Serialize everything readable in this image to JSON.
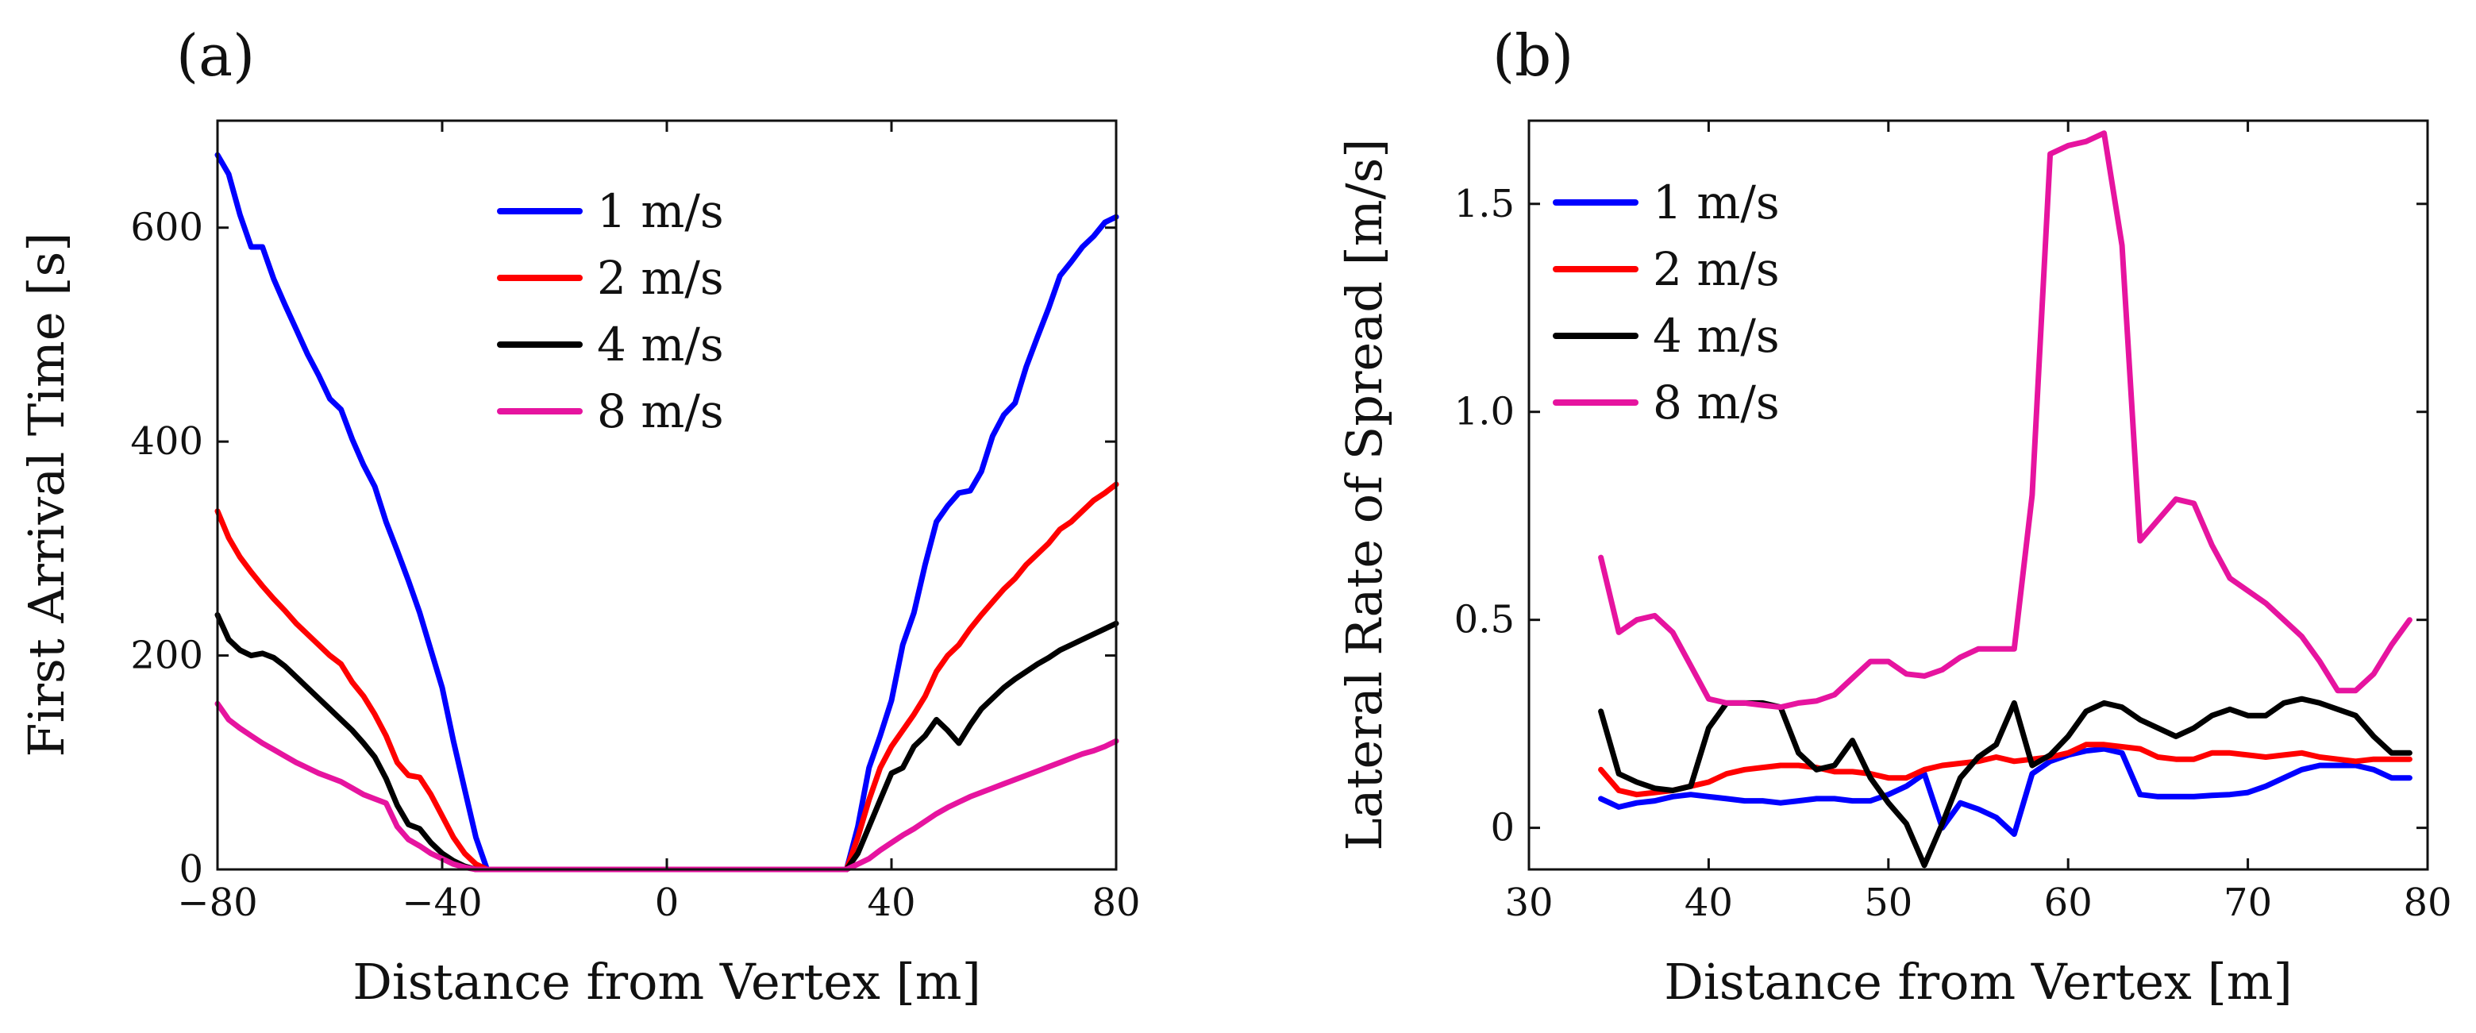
{
  "chart_data": [
    {
      "type": "line",
      "panel": "(a)",
      "xlabel": "Distance from Vertex [m]",
      "ylabel": "First Arrival Time [s]",
      "xlim": [
        -80,
        80
      ],
      "ylim": [
        0,
        700
      ],
      "xticks": [
        -80,
        -40,
        0,
        40,
        80
      ],
      "xtick_labels": [
        "−80",
        "−40",
        "0",
        "40",
        "80"
      ],
      "yticks": [
        0,
        200,
        400,
        600
      ],
      "ytick_labels": [
        "0",
        "200",
        "400",
        "600"
      ],
      "legend_position": "top-center",
      "series": [
        {
          "name": "1 m/s",
          "color": "#0000ff",
          "x": [
            -80,
            -78,
            -76,
            -74,
            -72,
            -70,
            -68,
            -66,
            -64,
            -62,
            -60,
            -58,
            -56,
            -54,
            -52,
            -50,
            -48,
            -46,
            -44,
            -42,
            -40,
            -38,
            -36,
            -34,
            -32,
            0,
            32,
            34,
            36,
            38,
            40,
            42,
            44,
            46,
            48,
            50,
            52,
            54,
            56,
            58,
            60,
            62,
            64,
            66,
            68,
            70,
            72,
            74,
            76,
            78,
            80
          ],
          "y": [
            668,
            650,
            612,
            582,
            582,
            552,
            528,
            505,
            482,
            462,
            440,
            430,
            402,
            378,
            358,
            325,
            298,
            270,
            240,
            205,
            170,
            120,
            75,
            30,
            0,
            0,
            0,
            40,
            95,
            125,
            158,
            210,
            240,
            285,
            325,
            340,
            352,
            354,
            372,
            405,
            425,
            436,
            470,
            498,
            525,
            555,
            568,
            582,
            592,
            605,
            610
          ]
        },
        {
          "name": "2 m/s",
          "color": "#ff0000",
          "x": [
            -80,
            -78,
            -76,
            -74,
            -72,
            -70,
            -68,
            -66,
            -64,
            -62,
            -60,
            -58,
            -56,
            -54,
            -52,
            -50,
            -48,
            -46,
            -44,
            -42,
            -40,
            -38,
            -36,
            -34,
            -32,
            0,
            32,
            34,
            36,
            38,
            40,
            42,
            44,
            46,
            48,
            50,
            52,
            54,
            56,
            58,
            60,
            62,
            64,
            66,
            68,
            70,
            72,
            74,
            76,
            78,
            80
          ],
          "y": [
            335,
            310,
            292,
            278,
            265,
            253,
            242,
            230,
            220,
            210,
            200,
            192,
            175,
            162,
            145,
            125,
            100,
            88,
            86,
            70,
            50,
            30,
            15,
            5,
            0,
            0,
            0,
            30,
            65,
            95,
            115,
            130,
            145,
            162,
            185,
            200,
            210,
            225,
            238,
            250,
            262,
            272,
            285,
            295,
            305,
            318,
            325,
            335,
            345,
            352,
            360
          ]
        },
        {
          "name": "4 m/s",
          "color": "#000000",
          "x": [
            -80,
            -78,
            -76,
            -74,
            -72,
            -70,
            -68,
            -66,
            -64,
            -62,
            -60,
            -58,
            -56,
            -54,
            -52,
            -50,
            -48,
            -46,
            -44,
            -42,
            -40,
            -38,
            -36,
            -34,
            -32,
            0,
            32,
            34,
            36,
            38,
            40,
            42,
            44,
            46,
            48,
            50,
            52,
            54,
            56,
            58,
            60,
            62,
            64,
            66,
            68,
            70,
            72,
            74,
            76,
            78,
            80
          ],
          "y": [
            238,
            215,
            205,
            200,
            202,
            198,
            190,
            180,
            170,
            160,
            150,
            140,
            130,
            118,
            105,
            85,
            60,
            42,
            38,
            25,
            15,
            8,
            3,
            0,
            0,
            0,
            0,
            15,
            40,
            65,
            90,
            95,
            115,
            125,
            140,
            130,
            118,
            135,
            150,
            160,
            170,
            178,
            185,
            192,
            198,
            205,
            210,
            215,
            220,
            225,
            230
          ]
        },
        {
          "name": "8 m/s",
          "color": "#e6149f",
          "x": [
            -80,
            -78,
            -76,
            -74,
            -72,
            -70,
            -68,
            -66,
            -64,
            -62,
            -60,
            -58,
            -56,
            -54,
            -52,
            -50,
            -48,
            -46,
            -44,
            -42,
            -40,
            -38,
            -36,
            -34,
            -32,
            0,
            32,
            34,
            36,
            38,
            40,
            42,
            44,
            46,
            48,
            50,
            52,
            54,
            56,
            58,
            60,
            62,
            64,
            66,
            68,
            70,
            72,
            74,
            76,
            78,
            80
          ],
          "y": [
            155,
            140,
            132,
            125,
            118,
            112,
            106,
            100,
            95,
            90,
            86,
            82,
            76,
            70,
            66,
            62,
            40,
            28,
            22,
            15,
            10,
            5,
            2,
            0,
            0,
            0,
            0,
            5,
            10,
            18,
            25,
            32,
            38,
            45,
            52,
            58,
            63,
            68,
            72,
            76,
            80,
            84,
            88,
            92,
            96,
            100,
            104,
            108,
            111,
            115,
            120
          ]
        }
      ]
    },
    {
      "type": "line",
      "panel": "(b)",
      "xlabel": "Distance from Vertex [m]",
      "ylabel": "Lateral Rate of Spread [m/s]",
      "xlim": [
        30,
        80
      ],
      "ylim": [
        -0.1,
        1.7
      ],
      "xticks": [
        30,
        40,
        50,
        60,
        70,
        80
      ],
      "xtick_labels": [
        "30",
        "40",
        "50",
        "60",
        "70",
        "80"
      ],
      "yticks": [
        0,
        0.5,
        1.0,
        1.5
      ],
      "ytick_labels": [
        "0",
        "0.5",
        "1.0",
        "1.5"
      ],
      "legend_position": "top-left",
      "series": [
        {
          "name": "1 m/s",
          "color": "#0000ff",
          "x": [
            34,
            35,
            36,
            37,
            38,
            39,
            40,
            41,
            42,
            43,
            44,
            45,
            46,
            47,
            48,
            49,
            50,
            51,
            52,
            53,
            54,
            55,
            56,
            57,
            58,
            59,
            60,
            61,
            62,
            63,
            64,
            65,
            66,
            67,
            68,
            69,
            70,
            71,
            72,
            73,
            74,
            75,
            76,
            77,
            78,
            79
          ],
          "y": [
            0.07,
            0.05,
            0.06,
            0.065,
            0.075,
            0.08,
            0.075,
            0.07,
            0.065,
            0.065,
            0.06,
            0.065,
            0.07,
            0.07,
            0.065,
            0.065,
            0.08,
            0.1,
            0.13,
            0.0,
            0.06,
            0.045,
            0.025,
            -0.015,
            0.13,
            0.16,
            0.175,
            0.185,
            0.19,
            0.18,
            0.08,
            0.075,
            0.075,
            0.075,
            0.078,
            0.08,
            0.085,
            0.1,
            0.12,
            0.14,
            0.15,
            0.15,
            0.15,
            0.14,
            0.12,
            0.12
          ]
        },
        {
          "name": "2 m/s",
          "color": "#ff0000",
          "x": [
            34,
            35,
            36,
            37,
            38,
            39,
            40,
            41,
            42,
            43,
            44,
            45,
            46,
            47,
            48,
            49,
            50,
            51,
            52,
            53,
            54,
            55,
            56,
            57,
            58,
            59,
            60,
            61,
            62,
            63,
            64,
            65,
            66,
            67,
            68,
            69,
            70,
            71,
            72,
            73,
            74,
            75,
            76,
            77,
            78,
            79
          ],
          "y": [
            0.14,
            0.09,
            0.08,
            0.085,
            0.09,
            0.1,
            0.11,
            0.13,
            0.14,
            0.145,
            0.15,
            0.15,
            0.145,
            0.135,
            0.135,
            0.13,
            0.12,
            0.12,
            0.14,
            0.15,
            0.155,
            0.16,
            0.17,
            0.16,
            0.165,
            0.17,
            0.18,
            0.2,
            0.2,
            0.195,
            0.19,
            0.17,
            0.165,
            0.165,
            0.18,
            0.18,
            0.175,
            0.17,
            0.175,
            0.18,
            0.17,
            0.165,
            0.16,
            0.165,
            0.165,
            0.165
          ]
        },
        {
          "name": "4 m/s",
          "color": "#000000",
          "x": [
            34,
            35,
            36,
            37,
            38,
            39,
            40,
            41,
            42,
            43,
            44,
            45,
            46,
            47,
            48,
            49,
            50,
            51,
            52,
            53,
            54,
            55,
            56,
            57,
            58,
            59,
            60,
            61,
            62,
            63,
            64,
            65,
            66,
            67,
            68,
            69,
            70,
            71,
            72,
            73,
            74,
            75,
            76,
            77,
            78,
            79
          ],
          "y": [
            0.28,
            0.13,
            0.11,
            0.095,
            0.09,
            0.1,
            0.24,
            0.3,
            0.3,
            0.3,
            0.29,
            0.18,
            0.14,
            0.15,
            0.21,
            0.12,
            0.06,
            0.01,
            -0.09,
            0.01,
            0.12,
            0.17,
            0.2,
            0.3,
            0.15,
            0.175,
            0.22,
            0.28,
            0.3,
            0.29,
            0.26,
            0.24,
            0.22,
            0.24,
            0.27,
            0.285,
            0.27,
            0.27,
            0.3,
            0.31,
            0.3,
            0.285,
            0.27,
            0.22,
            0.18,
            0.18
          ]
        },
        {
          "name": "8 m/s",
          "color": "#e6149f",
          "x": [
            34,
            35,
            36,
            37,
            38,
            39,
            40,
            41,
            42,
            43,
            44,
            45,
            46,
            47,
            48,
            49,
            50,
            51,
            52,
            53,
            54,
            55,
            56,
            57,
            58,
            59,
            60,
            61,
            62,
            63,
            64,
            65,
            66,
            67,
            68,
            69,
            70,
            71,
            72,
            73,
            74,
            75,
            76,
            77,
            78,
            79
          ],
          "y": [
            0.65,
            0.47,
            0.5,
            0.51,
            0.47,
            0.39,
            0.31,
            0.3,
            0.3,
            0.295,
            0.29,
            0.3,
            0.305,
            0.32,
            0.36,
            0.4,
            0.4,
            0.37,
            0.365,
            0.38,
            0.41,
            0.43,
            0.43,
            0.43,
            0.8,
            1.62,
            1.64,
            1.65,
            1.67,
            1.4,
            0.69,
            0.74,
            0.79,
            0.78,
            0.68,
            0.6,
            0.57,
            0.54,
            0.5,
            0.46,
            0.4,
            0.33,
            0.33,
            0.37,
            0.44,
            0.5
          ]
        }
      ]
    }
  ]
}
